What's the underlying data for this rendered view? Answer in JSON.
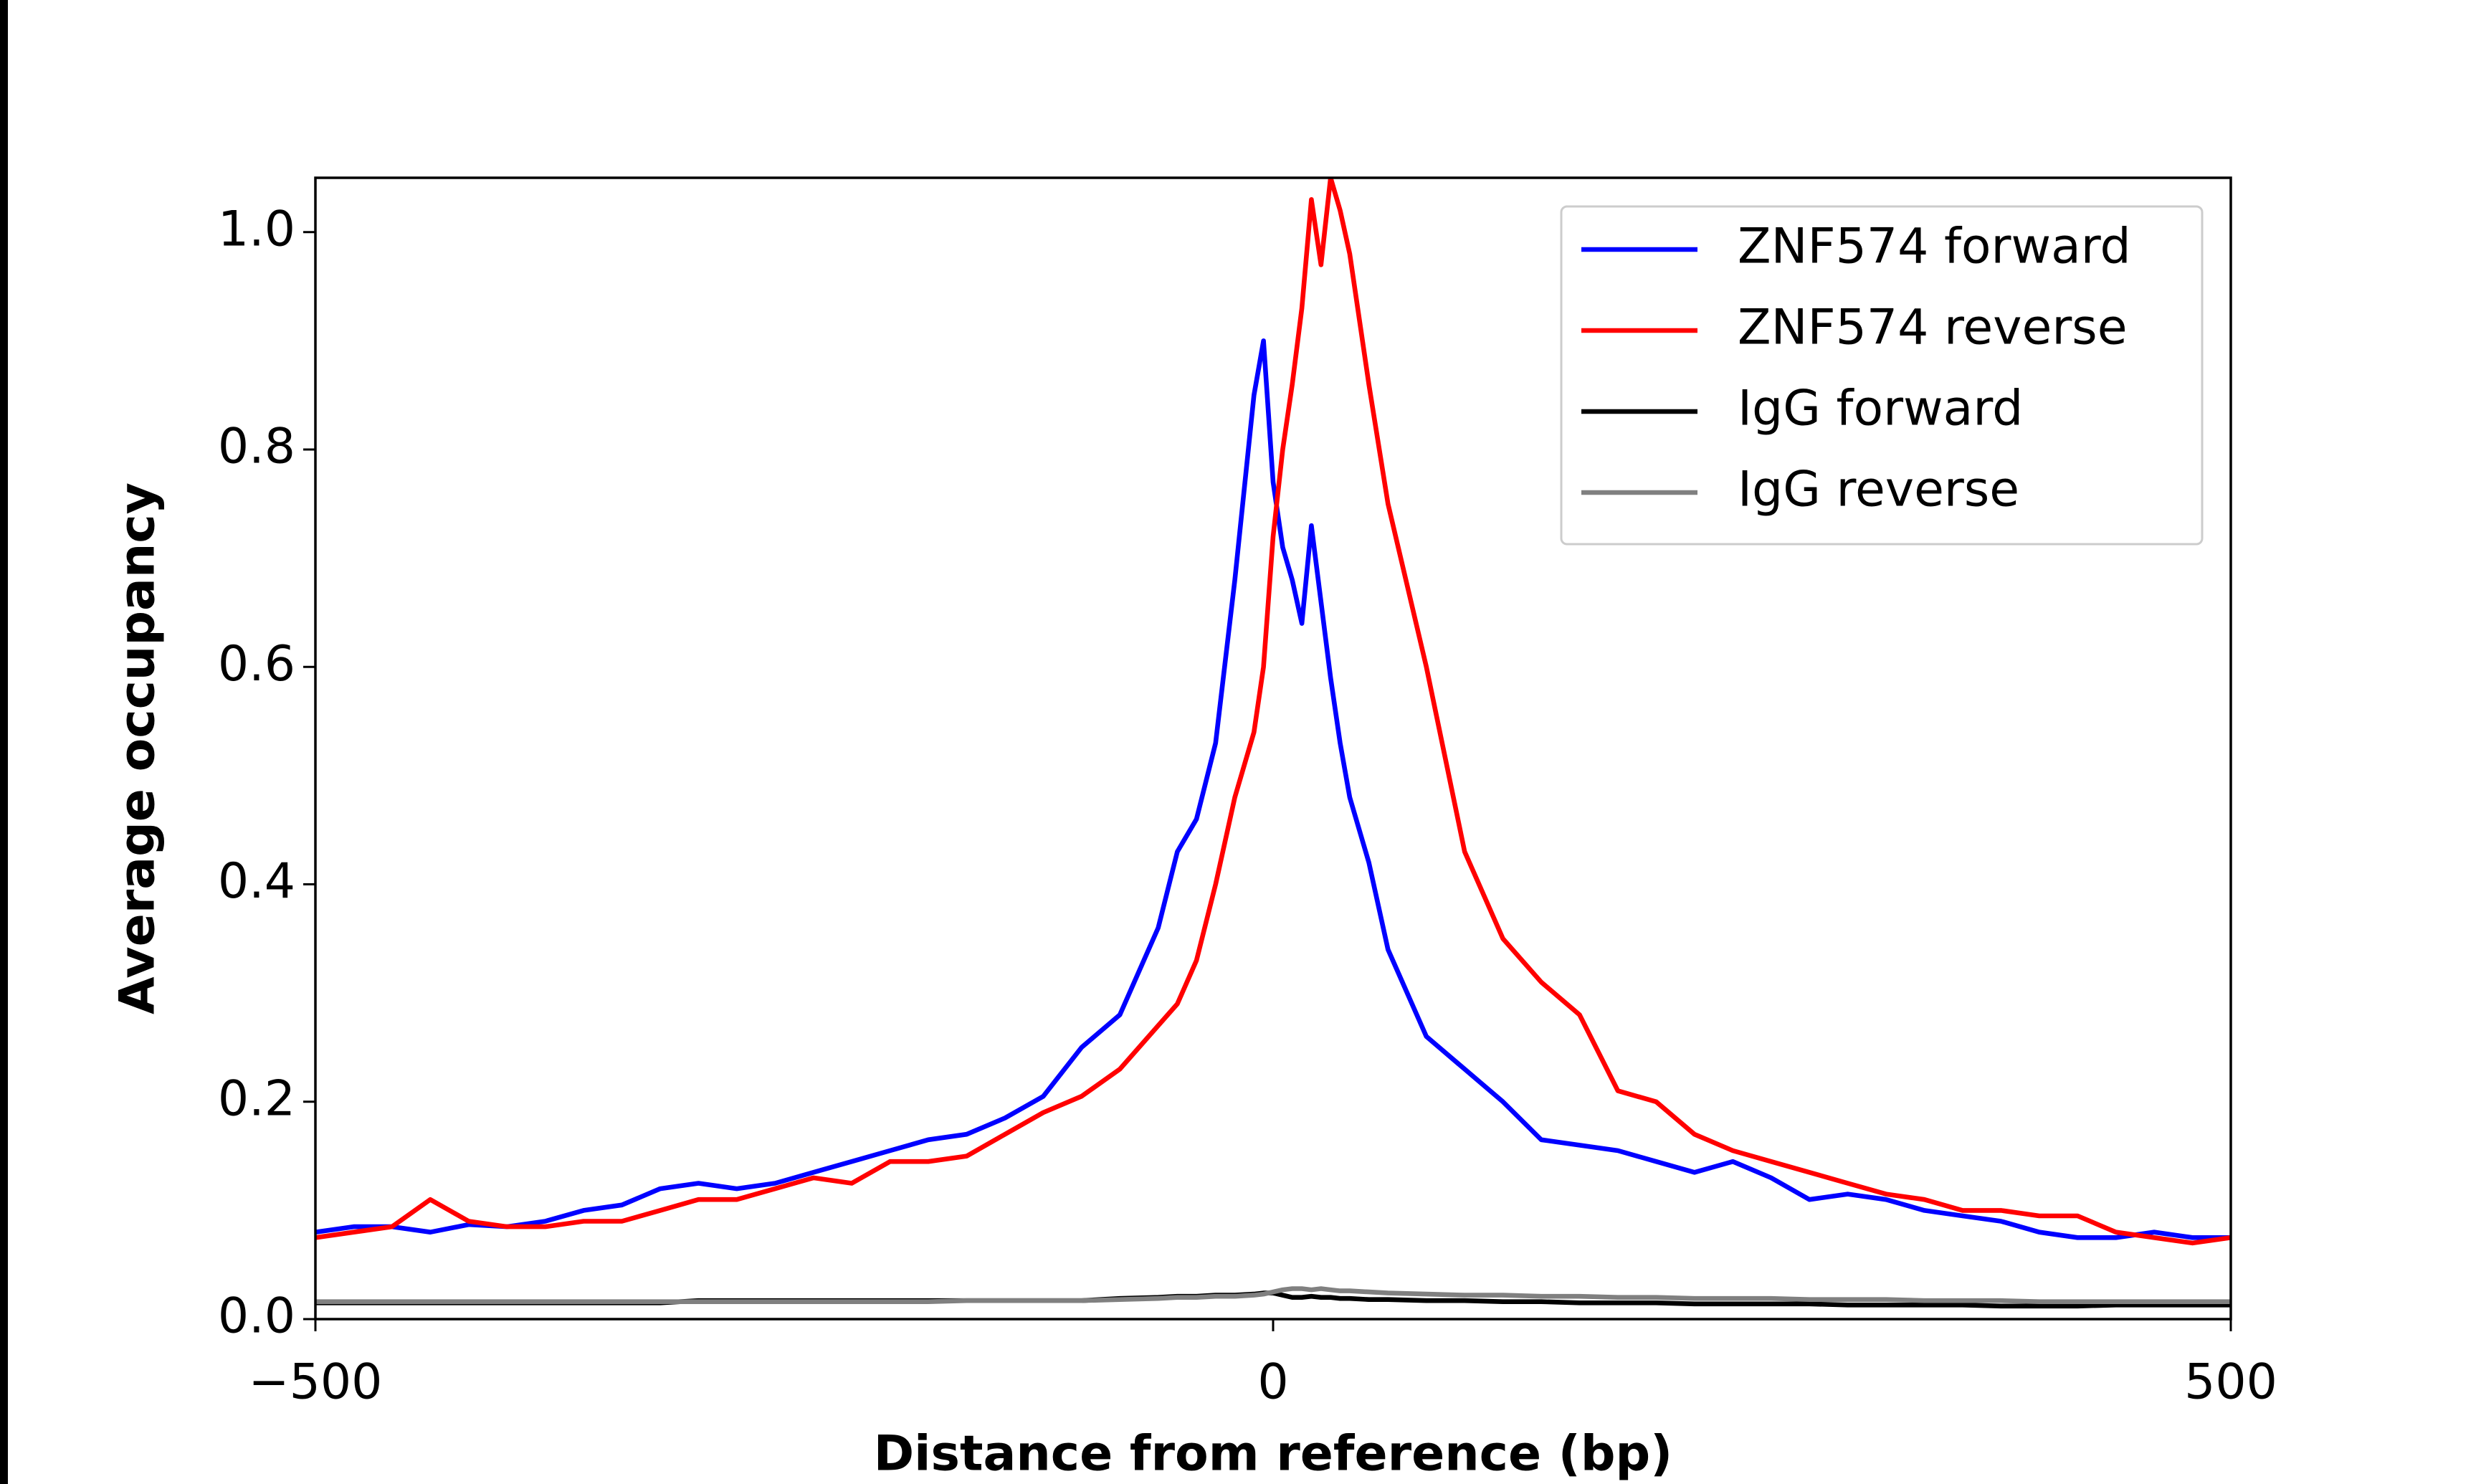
{
  "chart_data": {
    "type": "line",
    "xlabel": "Distance from reference (bp)",
    "ylabel": "Average occupancy",
    "x": [
      -500,
      -480,
      -460,
      -440,
      -420,
      -400,
      -380,
      -360,
      -340,
      -320,
      -300,
      -280,
      -260,
      -240,
      -220,
      -200,
      -180,
      -160,
      -140,
      -120,
      -100,
      -80,
      -60,
      -50,
      -40,
      -30,
      -20,
      -10,
      -5,
      0,
      5,
      10,
      15,
      20,
      25,
      30,
      35,
      40,
      50,
      60,
      80,
      100,
      120,
      140,
      160,
      180,
      200,
      220,
      240,
      260,
      280,
      300,
      320,
      340,
      360,
      380,
      400,
      420,
      440,
      460,
      480,
      500
    ],
    "series": [
      {
        "name": "ZNF574 forward",
        "color": "#0000ff",
        "values": [
          0.08,
          0.085,
          0.085,
          0.08,
          0.087,
          0.085,
          0.09,
          0.1,
          0.105,
          0.12,
          0.125,
          0.12,
          0.125,
          0.135,
          0.145,
          0.155,
          0.165,
          0.17,
          0.185,
          0.205,
          0.25,
          0.28,
          0.36,
          0.43,
          0.46,
          0.53,
          0.68,
          0.85,
          0.9,
          0.77,
          0.71,
          0.68,
          0.64,
          0.73,
          0.66,
          0.59,
          0.53,
          0.48,
          0.42,
          0.34,
          0.26,
          0.23,
          0.2,
          0.165,
          0.16,
          0.155,
          0.145,
          0.135,
          0.145,
          0.13,
          0.11,
          0.115,
          0.11,
          0.1,
          0.095,
          0.09,
          0.08,
          0.075,
          0.075,
          0.08,
          0.075,
          0.075
        ]
      },
      {
        "name": "ZNF574 reverse",
        "color": "#ff0000",
        "values": [
          0.075,
          0.08,
          0.085,
          0.11,
          0.09,
          0.085,
          0.085,
          0.09,
          0.09,
          0.1,
          0.11,
          0.11,
          0.12,
          0.13,
          0.125,
          0.145,
          0.145,
          0.15,
          0.17,
          0.19,
          0.205,
          0.23,
          0.27,
          0.29,
          0.33,
          0.4,
          0.48,
          0.54,
          0.6,
          0.72,
          0.8,
          0.86,
          0.93,
          1.03,
          0.97,
          1.05,
          1.02,
          0.98,
          0.86,
          0.75,
          0.6,
          0.43,
          0.35,
          0.31,
          0.28,
          0.21,
          0.2,
          0.17,
          0.155,
          0.145,
          0.135,
          0.125,
          0.115,
          0.11,
          0.1,
          0.1,
          0.095,
          0.095,
          0.08,
          0.075,
          0.07,
          0.075
        ]
      },
      {
        "name": "IgG forward",
        "color": "#000000",
        "values": [
          0.015,
          0.015,
          0.015,
          0.015,
          0.015,
          0.015,
          0.015,
          0.015,
          0.015,
          0.015,
          0.017,
          0.017,
          0.017,
          0.017,
          0.017,
          0.017,
          0.017,
          0.017,
          0.017,
          0.017,
          0.017,
          0.019,
          0.02,
          0.021,
          0.021,
          0.022,
          0.022,
          0.023,
          0.024,
          0.024,
          0.022,
          0.02,
          0.02,
          0.021,
          0.02,
          0.02,
          0.019,
          0.019,
          0.018,
          0.018,
          0.017,
          0.017,
          0.016,
          0.016,
          0.015,
          0.015,
          0.015,
          0.014,
          0.014,
          0.014,
          0.014,
          0.013,
          0.013,
          0.013,
          0.013,
          0.012,
          0.012,
          0.012,
          0.013,
          0.013,
          0.013,
          0.013
        ]
      },
      {
        "name": "IgG reverse",
        "color": "#808080",
        "values": [
          0.016,
          0.016,
          0.016,
          0.016,
          0.016,
          0.016,
          0.016,
          0.016,
          0.016,
          0.016,
          0.016,
          0.016,
          0.016,
          0.016,
          0.016,
          0.016,
          0.016,
          0.017,
          0.017,
          0.017,
          0.017,
          0.018,
          0.019,
          0.02,
          0.02,
          0.021,
          0.021,
          0.022,
          0.023,
          0.025,
          0.027,
          0.028,
          0.028,
          0.027,
          0.028,
          0.027,
          0.026,
          0.026,
          0.025,
          0.024,
          0.023,
          0.022,
          0.022,
          0.021,
          0.021,
          0.02,
          0.02,
          0.019,
          0.019,
          0.019,
          0.018,
          0.018,
          0.018,
          0.017,
          0.017,
          0.017,
          0.016,
          0.016,
          0.016,
          0.016,
          0.016,
          0.016
        ]
      }
    ],
    "xlim": [
      -500,
      500
    ],
    "xticks": [
      {
        "value": -500,
        "label": "−500"
      },
      0,
      500
    ],
    "ylim": [
      0,
      1.05
    ],
    "yticks": [
      {
        "value": 0,
        "label": "0.0"
      },
      0.2,
      0.4,
      0.6,
      0.8,
      {
        "value": 1,
        "label": "1.0"
      }
    ],
    "legend": "upper right",
    "grid": false
  }
}
